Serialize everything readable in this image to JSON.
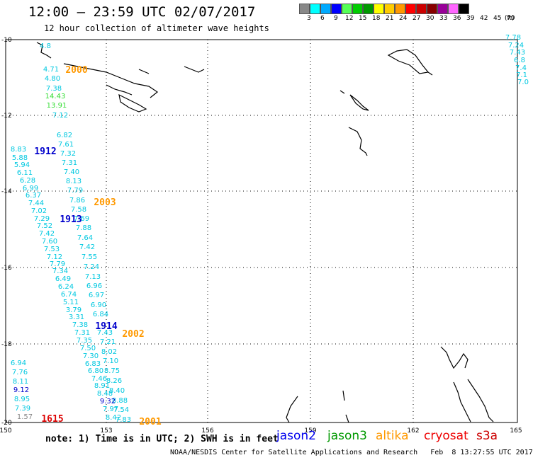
{
  "header": {
    "title": "12:00 – 23:59 UTC 02/07/2017",
    "subtitle": "12 hour collection of altimeter wave heights"
  },
  "legend": {
    "unit": "(ft)",
    "bins": [
      {
        "label": "3",
        "color": "#888888"
      },
      {
        "label": "6",
        "color": "#00ffff"
      },
      {
        "label": "9",
        "color": "#00aaff"
      },
      {
        "label": "12",
        "color": "#0000ff"
      },
      {
        "label": "15",
        "color": "#55ff55"
      },
      {
        "label": "18",
        "color": "#00cc00"
      },
      {
        "label": "21",
        "color": "#009900"
      },
      {
        "label": "24",
        "color": "#ffff00"
      },
      {
        "label": "27",
        "color": "#ffcc00"
      },
      {
        "label": "30",
        "color": "#ff9900"
      },
      {
        "label": "33",
        "color": "#ff0000"
      },
      {
        "label": "36",
        "color": "#cc0000"
      },
      {
        "label": "39",
        "color": "#880000"
      },
      {
        "label": "42",
        "color": "#990099"
      },
      {
        "label": "45",
        "color": "#ff66ff"
      },
      {
        "label": "70",
        "color": "#000000"
      }
    ]
  },
  "axes": {
    "lon_labels": [
      "150",
      "153",
      "156",
      "159",
      "162",
      "165"
    ],
    "lat_labels": [
      "-10",
      "-12",
      "-14",
      "-16",
      "-18",
      "-20"
    ]
  },
  "colors": {
    "cyan": "#00c8e0",
    "blue": "#0000cc",
    "green": "#33dd33",
    "orange": "#ff9900",
    "red": "#dd0000",
    "gray": "#888888"
  },
  "passes": [
    {
      "text": "2000",
      "type": "orange"
    },
    {
      "text": "1912",
      "type": "blue"
    },
    {
      "text": "2003",
      "type": "orange"
    },
    {
      "text": "1913",
      "type": "blue"
    },
    {
      "text": "1914",
      "type": "blue"
    },
    {
      "text": "2002",
      "type": "orange"
    },
    {
      "text": "1615",
      "type": "red"
    },
    {
      "text": "2001",
      "type": "orange"
    }
  ],
  "wave_heights": [
    {
      "v": "4.8",
      "c": "cyan"
    },
    {
      "v": "4.71",
      "c": "cyan"
    },
    {
      "v": "4.80",
      "c": "cyan"
    },
    {
      "v": "7.38",
      "c": "cyan"
    },
    {
      "v": "14.43",
      "c": "green"
    },
    {
      "v": "13.91",
      "c": "green"
    },
    {
      "v": "7.12",
      "c": "cyan"
    },
    {
      "v": "6.82",
      "c": "cyan"
    },
    {
      "v": "7.61",
      "c": "cyan"
    },
    {
      "v": "7.32",
      "c": "cyan"
    },
    {
      "v": "7.31",
      "c": "cyan"
    },
    {
      "v": "7.40",
      "c": "cyan"
    },
    {
      "v": "8.13",
      "c": "cyan"
    },
    {
      "v": "7.79",
      "c": "cyan"
    },
    {
      "v": "7.86",
      "c": "cyan"
    },
    {
      "v": "7.58",
      "c": "cyan"
    },
    {
      "v": "7.69",
      "c": "cyan"
    },
    {
      "v": "7.88",
      "c": "cyan"
    },
    {
      "v": "7.64",
      "c": "cyan"
    },
    {
      "v": "7.42",
      "c": "cyan"
    },
    {
      "v": "7.55",
      "c": "cyan"
    },
    {
      "v": "7.24",
      "c": "cyan"
    },
    {
      "v": "7.13",
      "c": "cyan"
    },
    {
      "v": "6.96",
      "c": "cyan"
    },
    {
      "v": "6.97",
      "c": "cyan"
    },
    {
      "v": "6.90",
      "c": "cyan"
    },
    {
      "v": "6.84",
      "c": "cyan"
    },
    {
      "v": "7.43",
      "c": "cyan"
    },
    {
      "v": "7.21",
      "c": "cyan"
    },
    {
      "v": "8.02",
      "c": "cyan"
    },
    {
      "v": "7.10",
      "c": "cyan"
    },
    {
      "v": "8.75",
      "c": "cyan"
    },
    {
      "v": "8.26",
      "c": "cyan"
    },
    {
      "v": "8.40",
      "c": "cyan"
    },
    {
      "v": "8.88",
      "c": "cyan"
    },
    {
      "v": "7.54",
      "c": "cyan"
    },
    {
      "v": "7.83",
      "c": "cyan"
    },
    {
      "v": "8.83",
      "c": "cyan"
    },
    {
      "v": "5.88",
      "c": "cyan"
    },
    {
      "v": "5.94",
      "c": "cyan"
    },
    {
      "v": "6.11",
      "c": "cyan"
    },
    {
      "v": "6.28",
      "c": "cyan"
    },
    {
      "v": "6.99",
      "c": "cyan"
    },
    {
      "v": "6.37",
      "c": "cyan"
    },
    {
      "v": "7.44",
      "c": "cyan"
    },
    {
      "v": "7.02",
      "c": "cyan"
    },
    {
      "v": "7.29",
      "c": "cyan"
    },
    {
      "v": "7.52",
      "c": "cyan"
    },
    {
      "v": "7.42",
      "c": "cyan"
    },
    {
      "v": "7.60",
      "c": "cyan"
    },
    {
      "v": "7.53",
      "c": "cyan"
    },
    {
      "v": "7.12",
      "c": "cyan"
    },
    {
      "v": "7.79",
      "c": "cyan"
    },
    {
      "v": "7.34",
      "c": "cyan"
    },
    {
      "v": "6.49",
      "c": "cyan"
    },
    {
      "v": "6.24",
      "c": "cyan"
    },
    {
      "v": "6.74",
      "c": "cyan"
    },
    {
      "v": "5.11",
      "c": "cyan"
    },
    {
      "v": "3.79",
      "c": "cyan"
    },
    {
      "v": "3.31",
      "c": "cyan"
    },
    {
      "v": "7.38",
      "c": "cyan"
    },
    {
      "v": "7.31",
      "c": "cyan"
    },
    {
      "v": "7.35",
      "c": "cyan"
    },
    {
      "v": "7.50",
      "c": "cyan"
    },
    {
      "v": "7.30",
      "c": "cyan"
    },
    {
      "v": "6.83",
      "c": "cyan"
    },
    {
      "v": "6.80",
      "c": "cyan"
    },
    {
      "v": "7.46",
      "c": "cyan"
    },
    {
      "v": "8.91",
      "c": "cyan"
    },
    {
      "v": "8.48",
      "c": "cyan"
    },
    {
      "v": "9.32",
      "c": "blue"
    },
    {
      "v": "7.97",
      "c": "cyan"
    },
    {
      "v": "8.42",
      "c": "cyan"
    },
    {
      "v": "6.94",
      "c": "cyan"
    },
    {
      "v": "7.76",
      "c": "cyan"
    },
    {
      "v": "8.11",
      "c": "cyan"
    },
    {
      "v": "9.12",
      "c": "blue"
    },
    {
      "v": "8.95",
      "c": "cyan"
    },
    {
      "v": "7.39",
      "c": "cyan"
    },
    {
      "v": "1.57",
      "c": "gray"
    },
    {
      "v": "7.78",
      "c": "cyan"
    },
    {
      "v": "7.24",
      "c": "cyan"
    },
    {
      "v": "7.43",
      "c": "cyan"
    },
    {
      "v": "6.8",
      "c": "cyan"
    },
    {
      "v": "7.4",
      "c": "cyan"
    },
    {
      "v": "7.1",
      "c": "cyan"
    },
    {
      "v": "7.0",
      "c": "cyan"
    }
  ],
  "footer": {
    "note": "note: 1) Time is in UTC; 2) SWH is in feet",
    "satellites": [
      {
        "name": "jason2",
        "color": "#0000ee"
      },
      {
        "name": "jason3",
        "color": "#009900"
      },
      {
        "name": "altika",
        "color": "#ff9900"
      },
      {
        "name": "cryosat",
        "color": "#ee0000"
      },
      {
        "name": "s3a",
        "color": "#cc0000"
      }
    ],
    "credit": "NOAA/NESDIS Center for Satellite Applications and Research   Feb  8 13:27:55 UTC 2017"
  }
}
